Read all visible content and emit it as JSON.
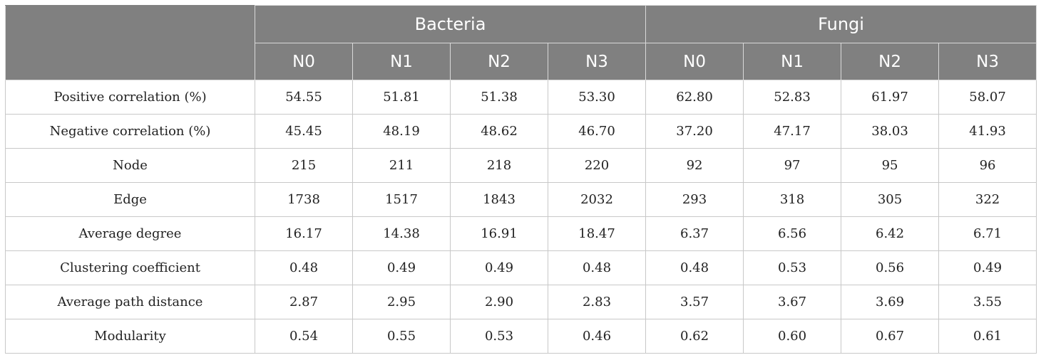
{
  "header": {
    "groups": [
      "Bacteria",
      "Fungi"
    ],
    "sub_columns": [
      "N0",
      "N1",
      "N2",
      "N3",
      "N0",
      "N1",
      "N2",
      "N3"
    ]
  },
  "rows": [
    {
      "label": "Positive correlation (%)",
      "values": [
        "54.55",
        "51.81",
        "51.38",
        "53.30",
        "62.80",
        "52.83",
        "61.97",
        "58.07"
      ]
    },
    {
      "label": "Negative correlation (%)",
      "values": [
        "45.45",
        "48.19",
        "48.62",
        "46.70",
        "37.20",
        "47.17",
        "38.03",
        "41.93"
      ]
    },
    {
      "label": "Node",
      "values": [
        "215",
        "211",
        "218",
        "220",
        "92",
        "97",
        "95",
        "96"
      ]
    },
    {
      "label": "Edge",
      "values": [
        "1738",
        "1517",
        "1843",
        "2032",
        "293",
        "318",
        "305",
        "322"
      ]
    },
    {
      "label": "Average degree",
      "values": [
        "16.17",
        "14.38",
        "16.91",
        "18.47",
        "6.37",
        "6.56",
        "6.42",
        "6.71"
      ]
    },
    {
      "label": "Clustering coefficient",
      "values": [
        "0.48",
        "0.49",
        "0.49",
        "0.48",
        "0.48",
        "0.53",
        "0.56",
        "0.49"
      ]
    },
    {
      "label": "Average path distance",
      "values": [
        "2.87",
        "2.95",
        "2.90",
        "2.83",
        "3.57",
        "3.67",
        "3.69",
        "3.55"
      ]
    },
    {
      "label": "Modularity",
      "values": [
        "0.54",
        "0.55",
        "0.53",
        "0.46",
        "0.62",
        "0.60",
        "0.67",
        "0.61"
      ]
    }
  ]
}
